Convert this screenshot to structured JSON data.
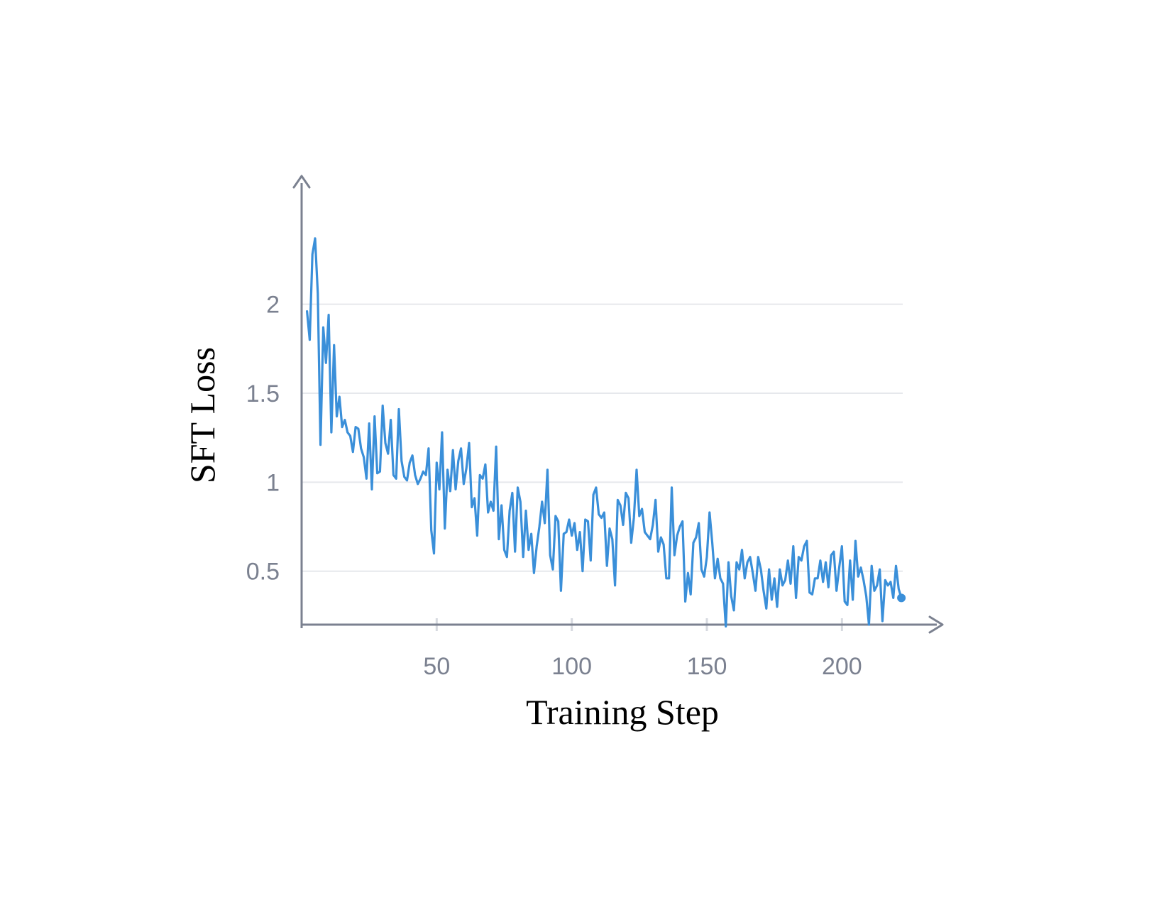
{
  "chart_data": {
    "type": "line",
    "title": "",
    "xlabel": "Training Step",
    "ylabel": "SFT Loss",
    "xlim": [
      0,
      238
    ],
    "ylim": [
      0.18,
      2.72
    ],
    "xticks": [
      50,
      100,
      150,
      200
    ],
    "xtick_labels": [
      "50",
      "100",
      "150",
      "200"
    ],
    "yticks": [
      0.5,
      1,
      1.5,
      2
    ],
    "ytick_labels": [
      "0.5",
      "1",
      "1.5",
      "2"
    ],
    "grid": "horizontal",
    "legend": "none",
    "line_color": "#3a8fd9",
    "axis_color": "#7b8190",
    "grid_color": "#e6e8ec",
    "series": [
      {
        "x": [
          2,
          3,
          4,
          5,
          6,
          7,
          8,
          9,
          10,
          11,
          12,
          13,
          14,
          15,
          16,
          17,
          18,
          19,
          20,
          21,
          22,
          23,
          24,
          25,
          26,
          27,
          28,
          29,
          30,
          31,
          32,
          33,
          34,
          35,
          36,
          37,
          38,
          39,
          40,
          41,
          42,
          43,
          44,
          45,
          46,
          47,
          48,
          49,
          50,
          51,
          52,
          53,
          54,
          55,
          56,
          57,
          58,
          59,
          60,
          61,
          62,
          63,
          64,
          65,
          66,
          67,
          68,
          69,
          70,
          71,
          72,
          73,
          74,
          75,
          76,
          77,
          78,
          79,
          80,
          81,
          82,
          83,
          84,
          85,
          86,
          87,
          88,
          89,
          90,
          91,
          92,
          93,
          94,
          95,
          96,
          97,
          98,
          99,
          100,
          101,
          102,
          103,
          104,
          105,
          106,
          107,
          108,
          109,
          110,
          111,
          112,
          113,
          114,
          115,
          116,
          117,
          118,
          119,
          120,
          121,
          122,
          123,
          124,
          125,
          126,
          127,
          128,
          129,
          130,
          131,
          132,
          133,
          134,
          135,
          136,
          137,
          138,
          139,
          140,
          141,
          142,
          143,
          144,
          145,
          146,
          147,
          148,
          149,
          150,
          151,
          152,
          153,
          154,
          155,
          156,
          157,
          158,
          159,
          160,
          161,
          162,
          163,
          164,
          165,
          166,
          167,
          168,
          169,
          170,
          171,
          172,
          173,
          174,
          175,
          176,
          177,
          178,
          179,
          180,
          181,
          182,
          183,
          184,
          185,
          186,
          187,
          188,
          189,
          190,
          191,
          192,
          193,
          194,
          195,
          196,
          197,
          198,
          199,
          200,
          201,
          202,
          203,
          204,
          205,
          206,
          207,
          208,
          209,
          210,
          211,
          212,
          213,
          214,
          215,
          216,
          217,
          218,
          219,
          220,
          221,
          222
        ],
        "y": [
          1.96,
          1.8,
          2.28,
          2.37,
          2.06,
          1.21,
          1.87,
          1.67,
          1.94,
          1.28,
          1.77,
          1.37,
          1.48,
          1.31,
          1.35,
          1.28,
          1.26,
          1.17,
          1.31,
          1.3,
          1.19,
          1.14,
          1.02,
          1.33,
          0.96,
          1.37,
          1.05,
          1.06,
          1.43,
          1.22,
          1.16,
          1.35,
          1.04,
          1.02,
          1.41,
          1.12,
          1.03,
          1.01,
          1.11,
          1.15,
          1.04,
          0.99,
          1.02,
          1.06,
          1.04,
          1.19,
          0.73,
          0.6,
          1.11,
          0.96,
          1.28,
          0.74,
          1.07,
          0.95,
          1.18,
          0.96,
          1.12,
          1.19,
          0.99,
          1.08,
          1.22,
          0.86,
          0.91,
          0.7,
          1.04,
          1.02,
          1.1,
          0.83,
          0.89,
          0.84,
          1.2,
          0.68,
          0.87,
          0.62,
          0.58,
          0.84,
          0.94,
          0.61,
          0.97,
          0.89,
          0.58,
          0.84,
          0.62,
          0.71,
          0.49,
          0.64,
          0.75,
          0.89,
          0.77,
          1.07,
          0.59,
          0.51,
          0.81,
          0.78,
          0.39,
          0.71,
          0.72,
          0.79,
          0.7,
          0.77,
          0.62,
          0.72,
          0.5,
          0.79,
          0.78,
          0.56,
          0.93,
          0.97,
          0.82,
          0.8,
          0.83,
          0.53,
          0.74,
          0.68,
          0.42,
          0.9,
          0.87,
          0.76,
          0.94,
          0.91,
          0.66,
          0.8,
          1.07,
          0.81,
          0.85,
          0.72,
          0.7,
          0.68,
          0.76,
          0.9,
          0.61,
          0.69,
          0.65,
          0.46,
          0.46,
          0.97,
          0.59,
          0.7,
          0.75,
          0.78,
          0.33,
          0.49,
          0.37,
          0.66,
          0.69,
          0.77,
          0.51,
          0.47,
          0.58,
          0.83,
          0.66,
          0.46,
          0.57,
          0.46,
          0.43,
          0.19,
          0.55,
          0.36,
          0.28,
          0.55,
          0.51,
          0.62,
          0.46,
          0.55,
          0.58,
          0.49,
          0.39,
          0.58,
          0.51,
          0.39,
          0.29,
          0.51,
          0.34,
          0.46,
          0.3,
          0.51,
          0.42,
          0.45,
          0.56,
          0.43,
          0.64,
          0.35,
          0.58,
          0.56,
          0.64,
          0.67,
          0.38,
          0.37,
          0.46,
          0.46,
          0.56,
          0.44,
          0.55,
          0.41,
          0.59,
          0.61,
          0.39,
          0.52,
          0.64,
          0.33,
          0.31,
          0.56,
          0.34,
          0.67,
          0.47,
          0.52,
          0.45,
          0.36,
          0.2,
          0.53,
          0.39,
          0.42,
          0.51,
          0.22,
          0.45,
          0.42,
          0.44,
          0.35,
          0.53,
          0.4,
          0.35
        ]
      }
    ]
  }
}
